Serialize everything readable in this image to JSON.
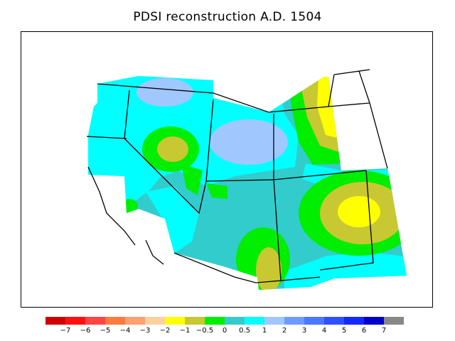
{
  "title": "PDSI reconstruction A.D. 1504",
  "legend": {
    "colors": [
      "#d00000",
      "#ff1010",
      "#ff4444",
      "#ff7a40",
      "#ffa070",
      "#ffd0a0",
      "#ffff00",
      "#c8c832",
      "#00ee00",
      "#33cccc",
      "#00ffff",
      "#a0c8ff",
      "#6e9bff",
      "#4a78ff",
      "#3050ff",
      "#1428ff",
      "#0000cc",
      "#888888"
    ],
    "tick_labels": [
      "−7",
      "−6",
      "−5",
      "−4",
      "−3",
      "−2",
      "−1",
      "−0.5",
      "0",
      "0.5",
      "1",
      "2",
      "3",
      "4",
      "5",
      "6",
      "7"
    ]
  },
  "map": {
    "fill_colors": {
      "cyan": "#00ffff",
      "teal": "#33cccc",
      "green": "#00ee00",
      "olive": "#c8c832",
      "yellow": "#ffff00",
      "lightblue": "#a0c8ff"
    }
  }
}
